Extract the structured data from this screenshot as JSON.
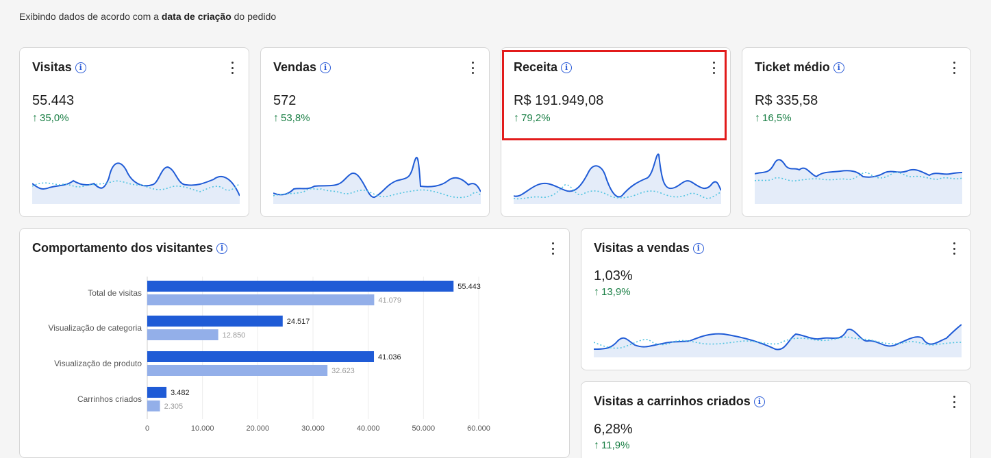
{
  "subtitle": {
    "prefix": "Exibindo dados de acordo com a ",
    "bold": "data de criação",
    "suffix": " do pedido"
  },
  "colors": {
    "accent": "#2a5bd7",
    "positive": "#1a7f45",
    "bar_current": "#1f5bd6",
    "bar_previous": "#93afe9",
    "highlight": "#e21b1b"
  },
  "cards": {
    "visitas": {
      "title": "Visitas",
      "value": "55.443",
      "change": "35,0%"
    },
    "vendas": {
      "title": "Vendas",
      "value": "572",
      "change": "53,8%"
    },
    "receita": {
      "title": "Receita",
      "value": "R$ 191.949,08",
      "change": "79,2%"
    },
    "ticket": {
      "title": "Ticket médio",
      "value": "R$ 335,58",
      "change": "16,5%"
    },
    "visitas_vendas": {
      "title": "Visitas a vendas",
      "value": "1,03%",
      "change": "13,9%"
    },
    "visitas_carrinhos": {
      "title": "Visitas a carrinhos criados",
      "value": "6,28%",
      "change": "11,9%"
    },
    "comportamento": {
      "title": "Comportamento dos visitantes"
    }
  },
  "chart_data": {
    "type": "bar",
    "orientation": "horizontal",
    "categories": [
      "Total de visitas",
      "Visualização de categoria",
      "Visualização de produto",
      "Carrinhos criados"
    ],
    "series": [
      {
        "values": [
          55443,
          24517,
          41036,
          3482
        ],
        "labels": [
          "55.443",
          "24.517",
          "41.036",
          "3.482"
        ]
      },
      {
        "values": [
          41079,
          12850,
          32623,
          2305
        ],
        "labels": [
          "41.079",
          "12.850",
          "32.623",
          "2.305"
        ]
      }
    ],
    "xlim": [
      0,
      60000
    ],
    "xticks": [
      0,
      10000,
      20000,
      30000,
      40000,
      50000,
      60000
    ],
    "xtick_labels": [
      "0",
      "10.000",
      "20.000",
      "30.000",
      "40.000",
      "50.000",
      "60.000"
    ],
    "grid": true
  },
  "icons": {
    "info": "info-icon",
    "menu": "kebab-menu-icon",
    "trend": "arrow-up-icon"
  }
}
